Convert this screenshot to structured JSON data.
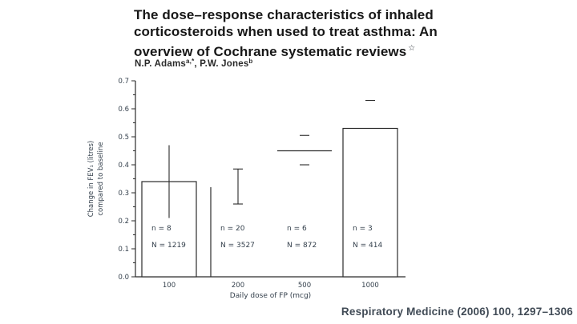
{
  "paper": {
    "title_lines": [
      "The dose–response characteristics of inhaled",
      "corticosteroids when used to treat asthma: An",
      "overview of Cochrane systematic reviews"
    ],
    "title_note": "☆",
    "authors": {
      "name1": "N.P. Adams",
      "sup1": "a,*",
      "sep": ", ",
      "name2": "P.W. Jones",
      "sup2": "b"
    }
  },
  "citation": "Respiratory Medicine (2006) 100, 1297–1306",
  "chart_data": {
    "type": "bar",
    "title": "",
    "xlabel": "Daily dose of FP (mcg)",
    "ylabel": "Change in FEV₁ (litres) compared to baseline",
    "ylabel_lines": [
      "Change in FEV₁ (litres)",
      "compared to baseline"
    ],
    "ylim": [
      0,
      0.7
    ],
    "ytick_labels": [
      "0.0",
      "0.1",
      "0.2",
      "0.3",
      "0.4",
      "0.5",
      "0.6",
      "0.7"
    ],
    "ytick_minor_step": 0.05,
    "grid": false,
    "legend": false,
    "categories": [
      "100",
      "200",
      "500",
      "1000"
    ],
    "values": [
      0.34,
      0.32,
      0.45,
      0.53
    ],
    "ci_low": [
      0.21,
      0.26,
      0.4,
      null
    ],
    "ci_high": [
      0.47,
      0.385,
      0.505,
      0.63
    ],
    "bar_render_styles": [
      "rect",
      "left-edge",
      "top-line",
      "rect"
    ],
    "error_render_styles": [
      "plain-line",
      "capped-ibeam",
      "cap-dashes",
      "high-dash"
    ],
    "annotations": [
      {
        "n": "n = 8",
        "N": "N = 1219"
      },
      {
        "n": "n = 20",
        "N": "N = 3527"
      },
      {
        "n": "n = 6",
        "N": "N = 872"
      },
      {
        "n": "n = 3",
        "N": "N = 414"
      }
    ],
    "colors": {
      "stroke": "#2b2b2b",
      "text": "#333f4b"
    }
  }
}
